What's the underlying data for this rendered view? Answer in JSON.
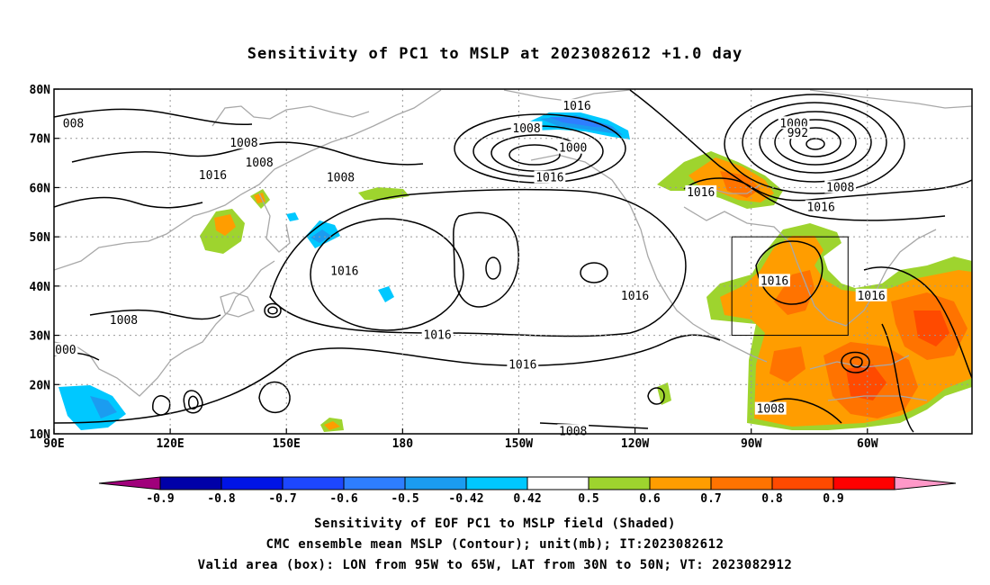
{
  "title": "Sensitivity of PC1 to MSLP at 2023082612 +1.0 day",
  "lat_labels": [
    "80N",
    "70N",
    "60N",
    "50N",
    "40N",
    "30N",
    "20N",
    "10N"
  ],
  "lon_labels": [
    "90E",
    "120E",
    "150E",
    "180",
    "150W",
    "120W",
    "90W",
    "60W"
  ],
  "contour_labels": [
    {
      "text": "1016",
      "lon": 225,
      "lat": 76.5
    },
    {
      "text": "1008",
      "lon": 212,
      "lat": 72
    },
    {
      "text": "1000",
      "lon": 224,
      "lat": 68
    },
    {
      "text": "1000",
      "lon": 281,
      "lat": 73
    },
    {
      "text": "992",
      "lon": 282,
      "lat": 71
    },
    {
      "text": "1008",
      "lon": 293,
      "lat": 60
    },
    {
      "text": "1016",
      "lon": 288,
      "lat": 56
    },
    {
      "text": "1016",
      "lon": 257,
      "lat": 59
    },
    {
      "text": "1016",
      "lon": 218,
      "lat": 62
    },
    {
      "text": "1008",
      "lon": 164,
      "lat": 62
    },
    {
      "text": "1016",
      "lon": 131,
      "lat": 62.5
    },
    {
      "text": "1008",
      "lon": 139,
      "lat": 69
    },
    {
      "text": "1008",
      "lon": 143,
      "lat": 65
    },
    {
      "text": "008",
      "lon": 95,
      "lat": 73
    },
    {
      "text": "1016",
      "lon": 165,
      "lat": 43
    },
    {
      "text": "1016",
      "lon": 189,
      "lat": 30
    },
    {
      "text": "1016",
      "lon": 211,
      "lat": 24
    },
    {
      "text": "1016",
      "lon": 240,
      "lat": 38
    },
    {
      "text": "1016",
      "lon": 276,
      "lat": 41
    },
    {
      "text": "1016",
      "lon": 301,
      "lat": 38
    },
    {
      "text": "1008",
      "lon": 108,
      "lat": 33
    },
    {
      "text": "000",
      "lon": 93,
      "lat": 27
    },
    {
      "text": "1008",
      "lon": 275,
      "lat": 15
    },
    {
      "text": "1008",
      "lon": 224,
      "lat": 10.5
    }
  ],
  "valid_box": {
    "lon_min": 265,
    "lon_max": 295,
    "lat_min": 30,
    "lat_max": 50
  },
  "colorbar": {
    "colors": [
      "#a0007b",
      "#0000a8",
      "#0014e6",
      "#1d47ff",
      "#2e7eff",
      "#1b9cf0",
      "#00c8ff",
      "#ffffff",
      "#9ed42e",
      "#ff9d00",
      "#ff7300",
      "#ff4a00",
      "#ff0000",
      "#ff98c8"
    ],
    "labels": [
      "-0.9",
      "-0.8",
      "-0.7",
      "-0.6",
      "-0.5",
      "-0.42",
      "0.42",
      "0.5",
      "0.6",
      "0.7",
      "0.8",
      "0.9"
    ]
  },
  "footer": {
    "line1": "Sensitivity of EOF PC1 to MSLP field (Shaded)",
    "line2": "CMC ensemble mean MSLP (Contour); unit(mb); IT:2023082612",
    "line3": "Valid area (box): LON from 95W to 65W, LAT from 30N to 50N; VT: 2023082912"
  }
}
